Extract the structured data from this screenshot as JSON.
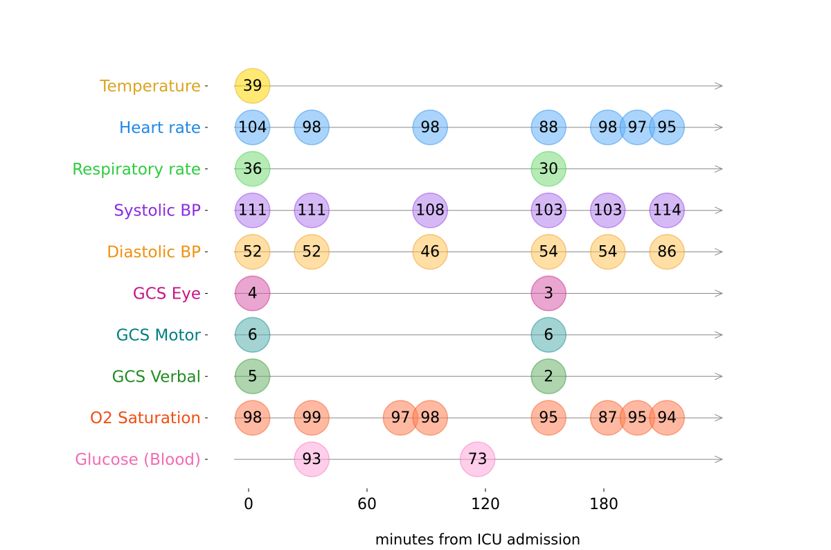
{
  "chart_data": {
    "type": "scatter",
    "xlabel": "minutes from ICU admission",
    "xlim": [
      -7,
      240
    ],
    "xticks": [
      0,
      60,
      120,
      180
    ],
    "rows": [
      {
        "name": "Temperature",
        "color": "#DAA520",
        "fill": "#FFD700",
        "points": [
          {
            "x": 2,
            "label": "39"
          }
        ]
      },
      {
        "name": "Heart rate",
        "color": "#1E88E5",
        "fill": "#64B1F8",
        "points": [
          {
            "x": 2,
            "label": "104"
          },
          {
            "x": 32,
            "label": "98"
          },
          {
            "x": 92,
            "label": "98"
          },
          {
            "x": 152,
            "label": "88"
          },
          {
            "x": 182,
            "label": "98"
          },
          {
            "x": 197,
            "label": "97"
          },
          {
            "x": 212,
            "label": "95"
          }
        ]
      },
      {
        "name": "Respiratory rate",
        "color": "#2ECC40",
        "fill": "#7ADB7A",
        "points": [
          {
            "x": 2,
            "label": "36"
          },
          {
            "x": 152,
            "label": "30"
          }
        ]
      },
      {
        "name": "Systolic BP",
        "color": "#8A2BE2",
        "fill": "#B380EC",
        "points": [
          {
            "x": 2,
            "label": "111"
          },
          {
            "x": 32,
            "label": "111"
          },
          {
            "x": 92,
            "label": "108"
          },
          {
            "x": 152,
            "label": "103"
          },
          {
            "x": 182,
            "label": "103"
          },
          {
            "x": 212,
            "label": "114"
          }
        ]
      },
      {
        "name": "Diastolic BP",
        "color": "#F0900F",
        "fill": "#FFC45A",
        "points": [
          {
            "x": 2,
            "label": "52"
          },
          {
            "x": 32,
            "label": "52"
          },
          {
            "x": 92,
            "label": "46"
          },
          {
            "x": 152,
            "label": "54"
          },
          {
            "x": 182,
            "label": "54"
          },
          {
            "x": 212,
            "label": "86"
          }
        ]
      },
      {
        "name": "GCS Eye",
        "color": "#C71585",
        "fill": "#D75CAA",
        "points": [
          {
            "x": 2,
            "label": "4"
          },
          {
            "x": 152,
            "label": "3"
          }
        ]
      },
      {
        "name": "GCS Motor",
        "color": "#008080",
        "fill": "#5AAFAF",
        "points": [
          {
            "x": 2,
            "label": "6"
          },
          {
            "x": 152,
            "label": "6"
          }
        ]
      },
      {
        "name": "GCS Verbal",
        "color": "#228B22",
        "fill": "#6BB36B",
        "points": [
          {
            "x": 2,
            "label": "5"
          },
          {
            "x": 152,
            "label": "2"
          }
        ]
      },
      {
        "name": "O2 Saturation",
        "color": "#F04E12",
        "fill": "#FF8055",
        "points": [
          {
            "x": 2,
            "label": "98"
          },
          {
            "x": 32,
            "label": "99"
          },
          {
            "x": 77,
            "label": "97"
          },
          {
            "x": 92,
            "label": "98"
          },
          {
            "x": 152,
            "label": "95"
          },
          {
            "x": 182,
            "label": "87"
          },
          {
            "x": 197,
            "label": "95"
          },
          {
            "x": 212,
            "label": "94"
          }
        ]
      },
      {
        "name": "Glucose (Blood)",
        "color": "#F06CB5",
        "fill": "#FFA6D8",
        "points": [
          {
            "x": 32,
            "label": "93"
          },
          {
            "x": 116,
            "label": "73"
          }
        ]
      }
    ]
  }
}
